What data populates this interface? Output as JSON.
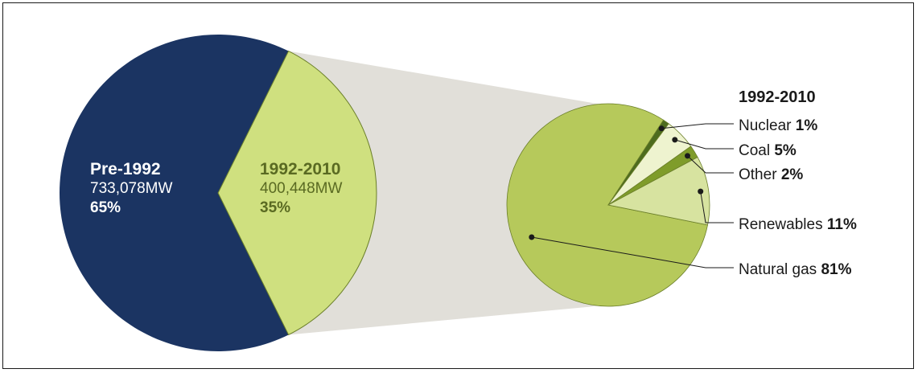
{
  "chart_data": [
    {
      "type": "pie",
      "slices": [
        {
          "label": "Pre-1992",
          "value": 733078,
          "value_text": "733,078MW",
          "percent": 65,
          "percent_text": "65%",
          "color": "#1b3462"
        },
        {
          "label": "1992-2010",
          "value": 400448,
          "value_text": "400,448MW",
          "percent": 35,
          "percent_text": "35%",
          "color": "#cfe07f"
        }
      ]
    },
    {
      "type": "pie",
      "title": "1992-2010",
      "slices": [
        {
          "label": "Nuclear",
          "value": 1,
          "value_text": "1%",
          "color": "#4d6b1e"
        },
        {
          "label": "Coal",
          "value": 5,
          "value_text": "5%",
          "color": "#eef3cf"
        },
        {
          "label": "Other",
          "value": 2,
          "value_text": "2%",
          "color": "#7f9c2a"
        },
        {
          "label": "Renewables",
          "value": 11,
          "value_text": "11%",
          "color": "#d7e3a0"
        },
        {
          "label": "Natural gas",
          "value": 81,
          "value_text": "81%",
          "color": "#b6c95b"
        }
      ]
    }
  ],
  "colors": {
    "connector_band": "#e1dfd9",
    "pie_outline": "#6b7f2a",
    "leader_line": "#1a1a1a",
    "text_dark": "#1a1a1a",
    "text_on_navy": "#ffffff",
    "text_on_lime": "#5a6a22"
  }
}
